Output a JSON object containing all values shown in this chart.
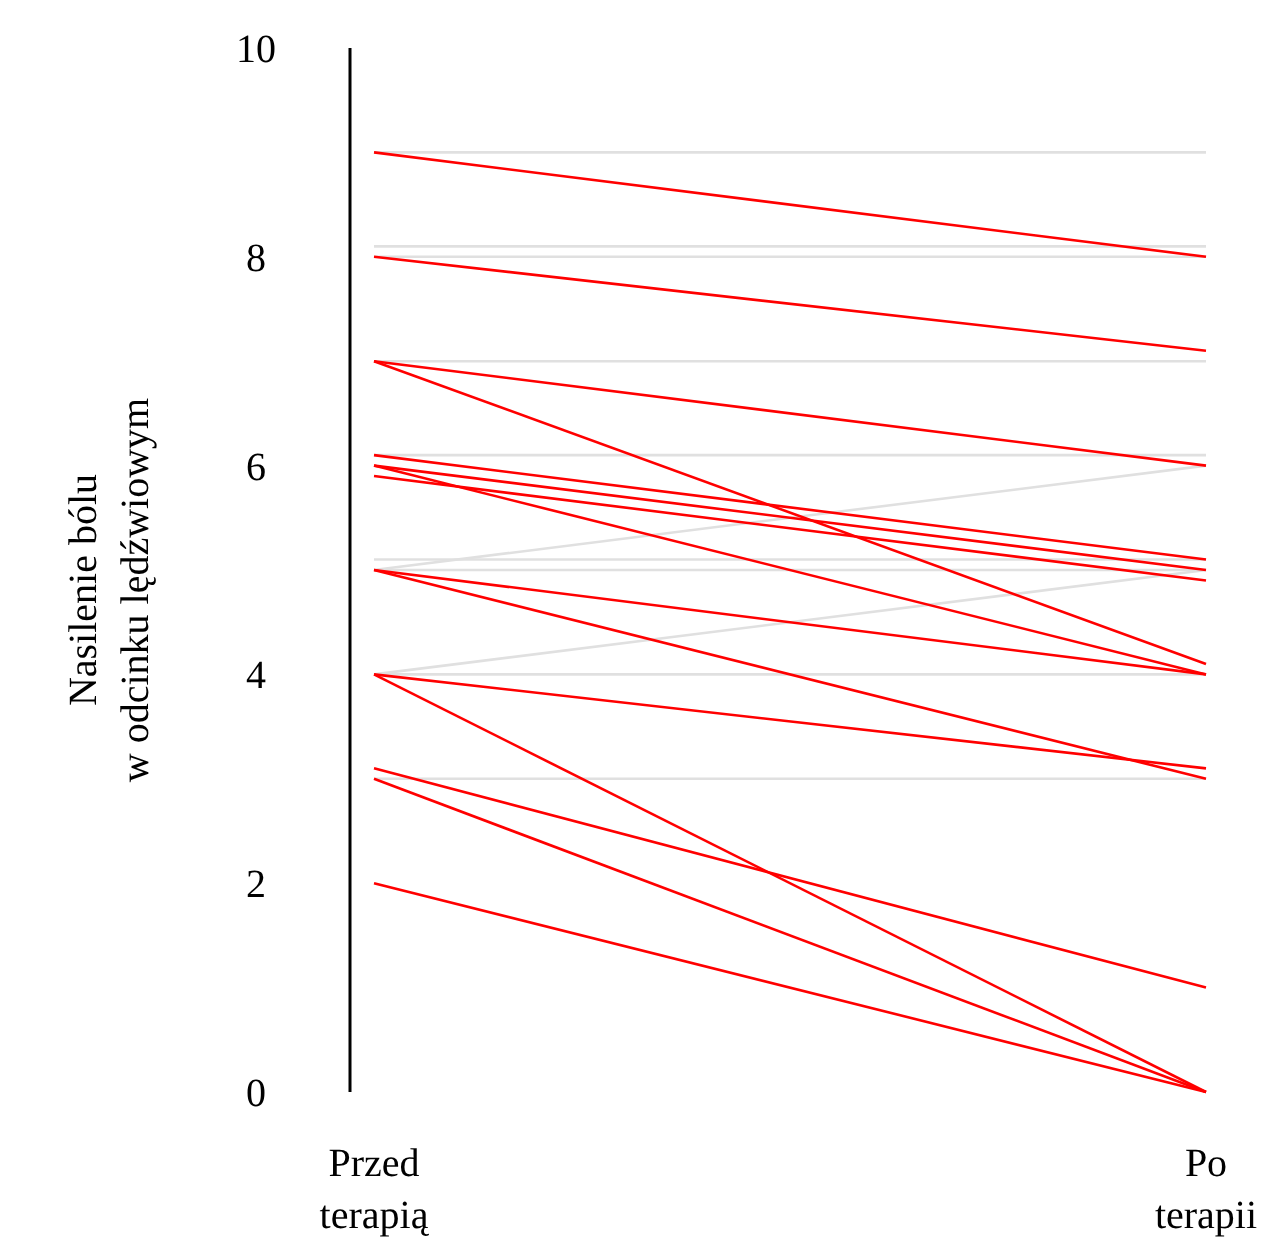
{
  "chart_data": {
    "type": "line",
    "ylabel": "Nasilenie bólu\nw odcinku lędźwiowym",
    "categories": [
      "Przed\nterapią",
      "Po\nterapii"
    ],
    "ylim": [
      0,
      10
    ],
    "yticks": [
      0,
      2,
      4,
      6,
      8,
      10
    ],
    "marker": "none",
    "line_style": "solid",
    "series": [
      {
        "color": "#e0e0e0",
        "values": [
          9,
          9
        ]
      },
      {
        "color": "#e0e0e0",
        "values": [
          8,
          8
        ]
      },
      {
        "color": "#e0e0e0",
        "values": [
          8.1,
          8.1
        ]
      },
      {
        "color": "#e0e0e0",
        "values": [
          7,
          7
        ]
      },
      {
        "color": "#e0e0e0",
        "values": [
          6.1,
          6.1
        ]
      },
      {
        "color": "#e0e0e0",
        "values": [
          5,
          5
        ]
      },
      {
        "color": "#e0e0e0",
        "values": [
          5.1,
          5.1
        ]
      },
      {
        "color": "#e0e0e0",
        "values": [
          5,
          6
        ]
      },
      {
        "color": "#e0e0e0",
        "values": [
          4,
          4
        ]
      },
      {
        "color": "#e0e0e0",
        "values": [
          4,
          5
        ]
      },
      {
        "color": "#e0e0e0",
        "values": [
          3,
          3
        ]
      },
      {
        "color": "#ff0000",
        "values": [
          9,
          8
        ]
      },
      {
        "color": "#ff0000",
        "values": [
          8,
          7.1
        ]
      },
      {
        "color": "#ff0000",
        "values": [
          7,
          6
        ]
      },
      {
        "color": "#ff0000",
        "values": [
          7,
          4.1
        ]
      },
      {
        "color": "#ff0000",
        "values": [
          6.1,
          5.1
        ]
      },
      {
        "color": "#ff0000",
        "values": [
          6,
          5
        ]
      },
      {
        "color": "#ff0000",
        "values": [
          5.9,
          4.9
        ]
      },
      {
        "color": "#ff0000",
        "values": [
          6,
          4
        ]
      },
      {
        "color": "#ff0000",
        "values": [
          5,
          4
        ]
      },
      {
        "color": "#ff0000",
        "values": [
          5,
          3
        ]
      },
      {
        "color": "#ff0000",
        "values": [
          4,
          3.1
        ]
      },
      {
        "color": "#ff0000",
        "values": [
          4,
          0
        ]
      },
      {
        "color": "#ff0000",
        "values": [
          3.1,
          1
        ]
      },
      {
        "color": "#ff0000",
        "values": [
          3,
          0
        ]
      },
      {
        "color": "#ff0000",
        "values": [
          2,
          0
        ]
      }
    ]
  }
}
